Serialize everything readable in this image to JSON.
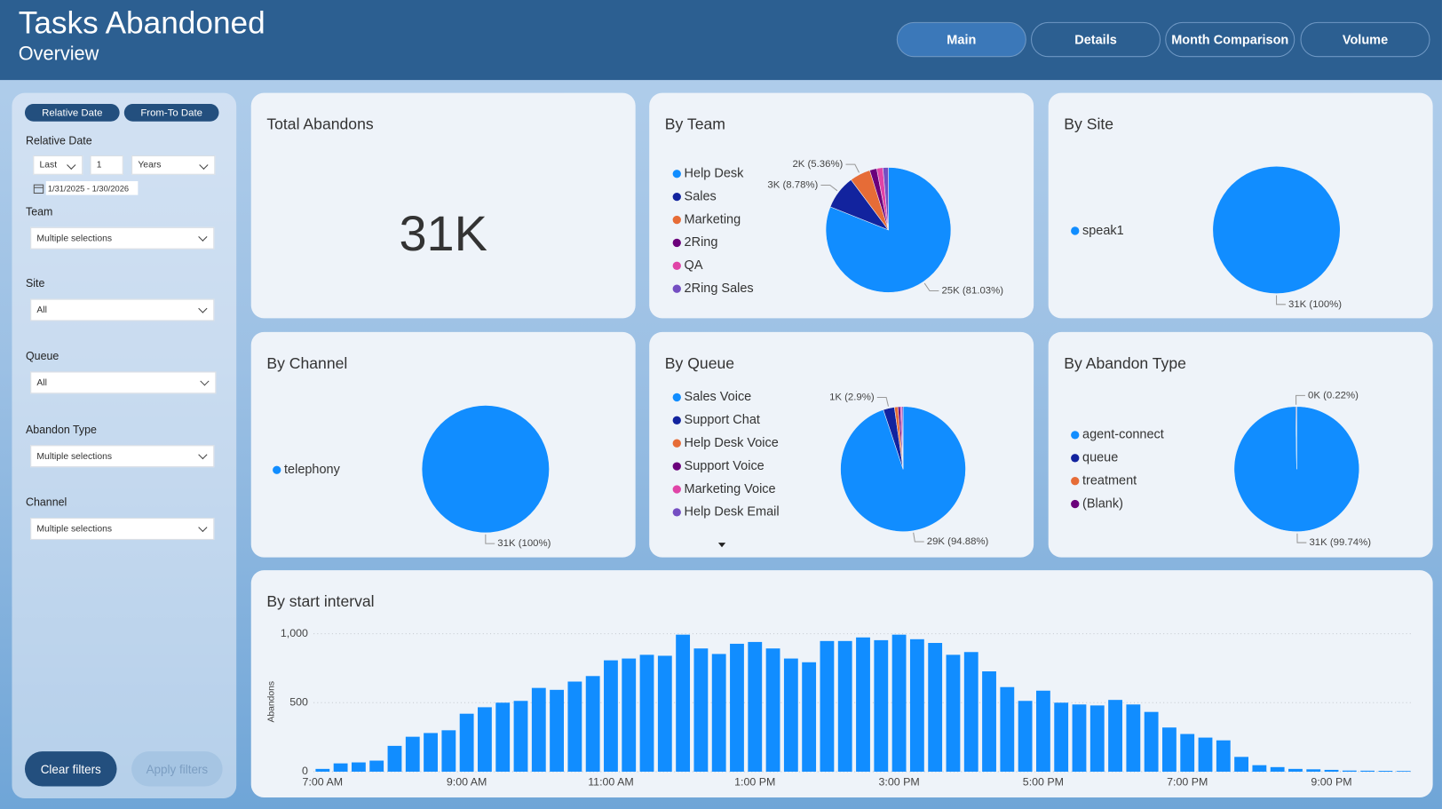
{
  "header": {
    "title": "Tasks Abandoned",
    "subtitle": "Overview"
  },
  "nav": [
    "Main",
    "Details",
    "Month Comparison",
    "Volume"
  ],
  "filters": {
    "modes": [
      "Relative Date",
      "From-To Date"
    ],
    "relative_label": "Relative Date",
    "relative": [
      "Last",
      "1",
      "Years"
    ],
    "date_range": "1/31/2025 - 1/30/2026",
    "slicers": [
      {
        "label": "Team",
        "value": "Multiple selections"
      },
      {
        "label": "Site",
        "value": "All"
      },
      {
        "label": "Queue",
        "value": "All"
      },
      {
        "label": "Abandon Type",
        "value": "Multiple selections"
      },
      {
        "label": "Channel",
        "value": "Multiple selections"
      }
    ],
    "buttons": [
      "Clear filters",
      "Apply filters"
    ]
  },
  "chart_data": [
    {
      "type": "card",
      "title": "Total Abandons",
      "values": [
        31000
      ],
      "value_labels": [
        "31K"
      ]
    },
    {
      "type": "pie",
      "title": "By Team",
      "categories": [
        "Help Desk",
        "Sales",
        "Marketing",
        "2Ring",
        "QA",
        "2Ring Sales"
      ],
      "values": [
        81.03,
        8.78,
        5.36,
        1.83,
        1.6,
        1.4
      ],
      "value_labels": [
        "25K (81.03%)",
        "3K (8.78%)",
        "2K (5.36%)",
        null,
        null,
        null
      ],
      "colors": [
        "#118DFF",
        "#12239E",
        "#E66C37",
        "#6B007B",
        "#E044A7",
        "#744EC2"
      ]
    },
    {
      "type": "pie",
      "title": "By Site",
      "categories": [
        "speak1"
      ],
      "values": [
        100
      ],
      "value_labels": [
        "31K (100%)"
      ],
      "colors": [
        "#118DFF"
      ]
    },
    {
      "type": "pie",
      "title": "By Channel",
      "categories": [
        "telephony"
      ],
      "values": [
        100
      ],
      "value_labels": [
        "31K (100%)"
      ],
      "colors": [
        "#118DFF"
      ]
    },
    {
      "type": "pie",
      "title": "By Queue",
      "categories": [
        "Sales Voice",
        "Support Chat",
        "Help Desk Voice",
        "Support Voice",
        "Marketing Voice",
        "Help Desk Email"
      ],
      "values": [
        94.88,
        2.9,
        0.92,
        0.6,
        0.4,
        0.3
      ],
      "value_labels": [
        "29K (94.88%)",
        "1K (2.9%)",
        null,
        null,
        null,
        null
      ],
      "colors": [
        "#118DFF",
        "#12239E",
        "#E66C37",
        "#6B007B",
        "#E044A7",
        "#744EC2"
      ]
    },
    {
      "type": "pie",
      "title": "By Abandon Type",
      "categories": [
        "agent-connect",
        "queue",
        "treatment",
        "(Blank)"
      ],
      "values": [
        99.74,
        0.22,
        0.03,
        0.01
      ],
      "value_labels": [
        "31K (99.74%)",
        "0K (0.22%)",
        null,
        null
      ],
      "colors": [
        "#118DFF",
        "#12239E",
        "#E66C37",
        "#6B007B"
      ]
    },
    {
      "type": "bar",
      "title": "By start interval",
      "y_label": "Abandons",
      "color": "#118DFF",
      "categories": [
        "7:00 AM",
        null,
        null,
        null,
        null,
        null,
        null,
        null,
        "9:00 AM",
        null,
        null,
        null,
        null,
        null,
        null,
        null,
        "11:00 AM",
        null,
        null,
        null,
        null,
        null,
        null,
        null,
        "1:00 PM",
        null,
        null,
        null,
        null,
        null,
        null,
        null,
        "3:00 PM",
        null,
        null,
        null,
        null,
        null,
        null,
        null,
        "5:00 PM",
        null,
        null,
        null,
        null,
        null,
        null,
        null,
        "7:00 PM",
        null,
        null,
        null,
        null,
        null,
        null,
        null,
        "9:00 PM",
        null,
        null,
        null,
        null
      ],
      "values": [
        20,
        60,
        67,
        80,
        187,
        253,
        280,
        300,
        420,
        467,
        500,
        513,
        607,
        593,
        653,
        693,
        807,
        820,
        847,
        840,
        993,
        893,
        853,
        927,
        940,
        893,
        820,
        793,
        947,
        947,
        973,
        953,
        993,
        960,
        933,
        847,
        867,
        727,
        613,
        513,
        587,
        500,
        487,
        480,
        520,
        487,
        433,
        320,
        273,
        247,
        227,
        107,
        47,
        33,
        20,
        17,
        13,
        8,
        7,
        6,
        5
      ],
      "ylim": [
        0,
        1000
      ],
      "yticks": [
        0,
        500,
        {
          "value": 1000,
          "label": "1,000"
        }
      ],
      "grid": true
    }
  ]
}
